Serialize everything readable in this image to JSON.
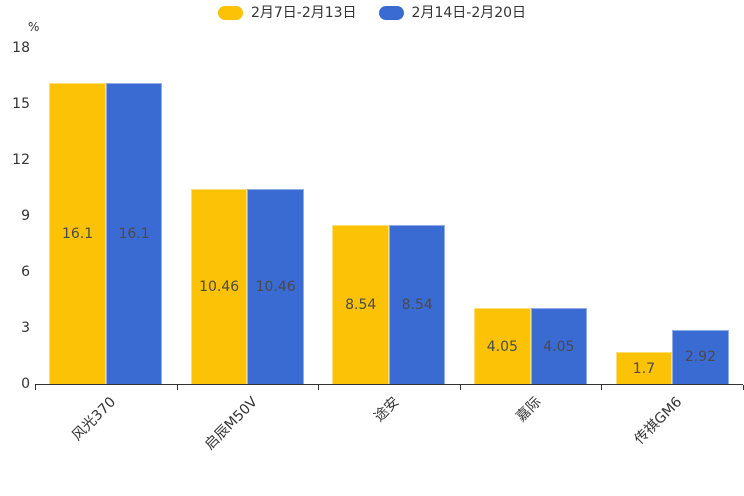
{
  "chart_data": {
    "type": "bar",
    "title": "",
    "unit": "%",
    "categories": [
      "风光370",
      "启辰M50V",
      "途安",
      "嘉际",
      "传祺GM6"
    ],
    "series": [
      {
        "name": "2月7日-2月13日",
        "color": "#FCC306",
        "values": [
          16.1,
          10.46,
          8.54,
          4.05,
          1.7
        ]
      },
      {
        "name": "2月14日-2月20日",
        "color": "#3A6BD2",
        "values": [
          16.1,
          10.46,
          8.54,
          4.05,
          2.92
        ]
      }
    ],
    "value_labels": [
      [
        "16.1",
        "10.46",
        "8.54",
        "4.05",
        "1.7"
      ],
      [
        "16.1",
        "10.46",
        "8.54",
        "4.05",
        "2.92"
      ]
    ],
    "ylim": [
      0,
      18
    ],
    "y_ticks": [
      0,
      3,
      6,
      9,
      12,
      15,
      18
    ],
    "grid": false,
    "legend_position": "top",
    "axis_color": "#333333",
    "label_color": "#4a4a4a"
  }
}
